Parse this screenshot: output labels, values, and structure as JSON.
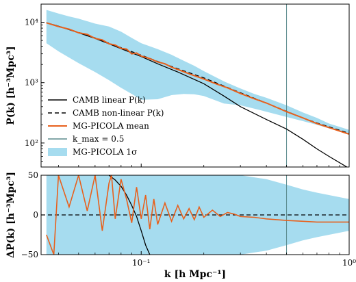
{
  "chart_data": [
    {
      "type": "line",
      "panel": "top",
      "xscale": "log",
      "yscale": "log",
      "xlim": [
        0.033,
        1.0
      ],
      "ylim": [
        40,
        20000
      ],
      "ylabel": "P(k) [h⁻³Mpc³]",
      "yticks": [
        {
          "value": 100,
          "label": "10²"
        },
        {
          "value": 1000,
          "label": "10³"
        },
        {
          "value": 10000,
          "label": "10⁴"
        }
      ],
      "vline": {
        "name": "k_max = 0.5",
        "x": 0.5,
        "color": "#5a8a8c"
      },
      "legend": {
        "position": "lower-left",
        "entries": [
          {
            "label": "CAMB linear P(k)",
            "style": "solid",
            "color": "#000000"
          },
          {
            "label": "CAMB non-linear P(k)",
            "style": "dashed",
            "color": "#000000"
          },
          {
            "label": "MG-PICOLA mean",
            "style": "solid",
            "color": "#e8601c"
          },
          {
            "label": "k_max = 0.5",
            "style": "solid",
            "color": "#5a8a8c"
          },
          {
            "label": "MG-PICOLA 1σ",
            "style": "patch",
            "color": "#a6dcef"
          }
        ]
      },
      "band": {
        "name": "MG-PICOLA 1σ",
        "color": "#a6dcef",
        "x": [
          0.035,
          0.04,
          0.045,
          0.05,
          0.06,
          0.07,
          0.08,
          0.09,
          0.1,
          0.12,
          0.14,
          0.16,
          0.18,
          0.2,
          0.25,
          0.3,
          0.35,
          0.4,
          0.5,
          0.6,
          0.7,
          0.8,
          1.0
        ],
        "lower": [
          4500,
          3300,
          2600,
          2100,
          1500,
          1100,
          820,
          650,
          520,
          530,
          620,
          650,
          640,
          600,
          450,
          420,
          370,
          330,
          270,
          230,
          200,
          175,
          140
        ],
        "upper": [
          16000,
          14000,
          12500,
          11500,
          9500,
          8500,
          7000,
          5500,
          4500,
          3600,
          2900,
          2300,
          1900,
          1550,
          1050,
          800,
          650,
          560,
          420,
          320,
          260,
          210,
          165
        ]
      },
      "series": [
        {
          "name": "CAMB linear P(k)",
          "color": "#000000",
          "style": "solid",
          "x": [
            0.035,
            0.04,
            0.05,
            0.06,
            0.07,
            0.08,
            0.1,
            0.12,
            0.15,
            0.2,
            0.25,
            0.3,
            0.4,
            0.5,
            0.6,
            0.7,
            0.8,
            1.0
          ],
          "y": [
            9800,
            8600,
            6700,
            5400,
            4400,
            3650,
            2700,
            2050,
            1500,
            960,
            600,
            400,
            245,
            170,
            115,
            80,
            60,
            38
          ]
        },
        {
          "name": "CAMB non-linear P(k)",
          "color": "#000000",
          "style": "dashed",
          "x": [
            0.035,
            0.04,
            0.05,
            0.06,
            0.07,
            0.08,
            0.1,
            0.12,
            0.15,
            0.2,
            0.25,
            0.3,
            0.4,
            0.5,
            0.6,
            0.7,
            0.8,
            1.0
          ],
          "y": [
            9800,
            8600,
            6800,
            5500,
            4500,
            3800,
            2850,
            2250,
            1700,
            1200,
            880,
            680,
            460,
            335,
            260,
            215,
            185,
            145
          ]
        },
        {
          "name": "MG-PICOLA mean",
          "color": "#e8601c",
          "style": "solid",
          "x": [
            0.035,
            0.04,
            0.045,
            0.05,
            0.055,
            0.06,
            0.065,
            0.07,
            0.075,
            0.08,
            0.085,
            0.09,
            0.095,
            0.1,
            0.11,
            0.12,
            0.13,
            0.14,
            0.15,
            0.17,
            0.2,
            0.23,
            0.26,
            0.3,
            0.35,
            0.4,
            0.5,
            0.6,
            0.7,
            0.8,
            1.0
          ],
          "y": [
            9800,
            8500,
            7700,
            6700,
            6300,
            5400,
            5100,
            4400,
            4200,
            3700,
            3600,
            3000,
            3100,
            2750,
            2500,
            2200,
            2050,
            1800,
            1650,
            1400,
            1150,
            950,
            820,
            660,
            540,
            460,
            330,
            260,
            210,
            180,
            140
          ]
        }
      ]
    },
    {
      "type": "line",
      "panel": "bottom",
      "xscale": "log",
      "xlim": [
        0.033,
        1.0
      ],
      "ylim": [
        -50,
        50
      ],
      "xlabel": "k [h Mpc⁻¹]",
      "ylabel": "ΔP(k) [h⁻³Mpc³]",
      "xticks": [
        {
          "value": 0.1,
          "label": "10⁻¹"
        },
        {
          "value": 1.0,
          "label": "10⁰"
        }
      ],
      "yticks": [
        {
          "value": -50,
          "label": "−50"
        },
        {
          "value": 0,
          "label": "0"
        },
        {
          "value": 50,
          "label": "50"
        }
      ],
      "vline": {
        "x": 0.5,
        "color": "#5a8a8c"
      },
      "zero_line": {
        "y": 0,
        "style": "dashed",
        "color": "#000000"
      },
      "band": {
        "name": "MG-PICOLA 1σ",
        "color": "#a6dcef",
        "x": [
          0.035,
          0.1,
          0.12,
          0.15,
          0.2,
          0.25,
          0.3,
          0.4,
          0.5,
          0.6,
          0.7,
          0.8,
          1.0
        ],
        "lower": [
          -50,
          -50,
          -50,
          -50,
          -50,
          -50,
          -50,
          -45,
          -38,
          -32,
          -28,
          -25,
          -20
        ],
        "upper": [
          50,
          50,
          50,
          50,
          50,
          50,
          50,
          45,
          38,
          32,
          28,
          25,
          20
        ]
      },
      "series": [
        {
          "name": "CAMB linear P(k)",
          "color": "#000000",
          "style": "solid",
          "x": [
            0.07,
            0.075,
            0.08,
            0.085,
            0.09,
            0.095,
            0.1,
            0.105,
            0.11
          ],
          "y": [
            50,
            44,
            36,
            25,
            12,
            -2,
            -20,
            -38,
            -50
          ]
        },
        {
          "name": "MG-PICOLA mean",
          "color": "#e8601c",
          "style": "solid",
          "x": [
            0.035,
            0.038,
            0.04,
            0.045,
            0.05,
            0.055,
            0.06,
            0.065,
            0.07,
            0.072,
            0.075,
            0.08,
            0.085,
            0.09,
            0.095,
            0.1,
            0.105,
            0.11,
            0.115,
            0.12,
            0.13,
            0.14,
            0.15,
            0.16,
            0.17,
            0.18,
            0.19,
            0.2,
            0.22,
            0.24,
            0.26,
            0.28,
            0.3,
            0.35,
            0.4,
            0.5,
            0.6,
            0.7,
            0.8,
            1.0
          ],
          "y": [
            -25,
            -50,
            50,
            10,
            50,
            5,
            50,
            -20,
            40,
            50,
            -5,
            45,
            20,
            -10,
            35,
            -5,
            25,
            -18,
            20,
            -12,
            15,
            -8,
            12,
            -5,
            8,
            -6,
            10,
            -3,
            6,
            -2,
            3,
            1,
            -2,
            -3,
            -5,
            -7,
            -8,
            -9,
            -9,
            -9
          ]
        }
      ]
    }
  ]
}
